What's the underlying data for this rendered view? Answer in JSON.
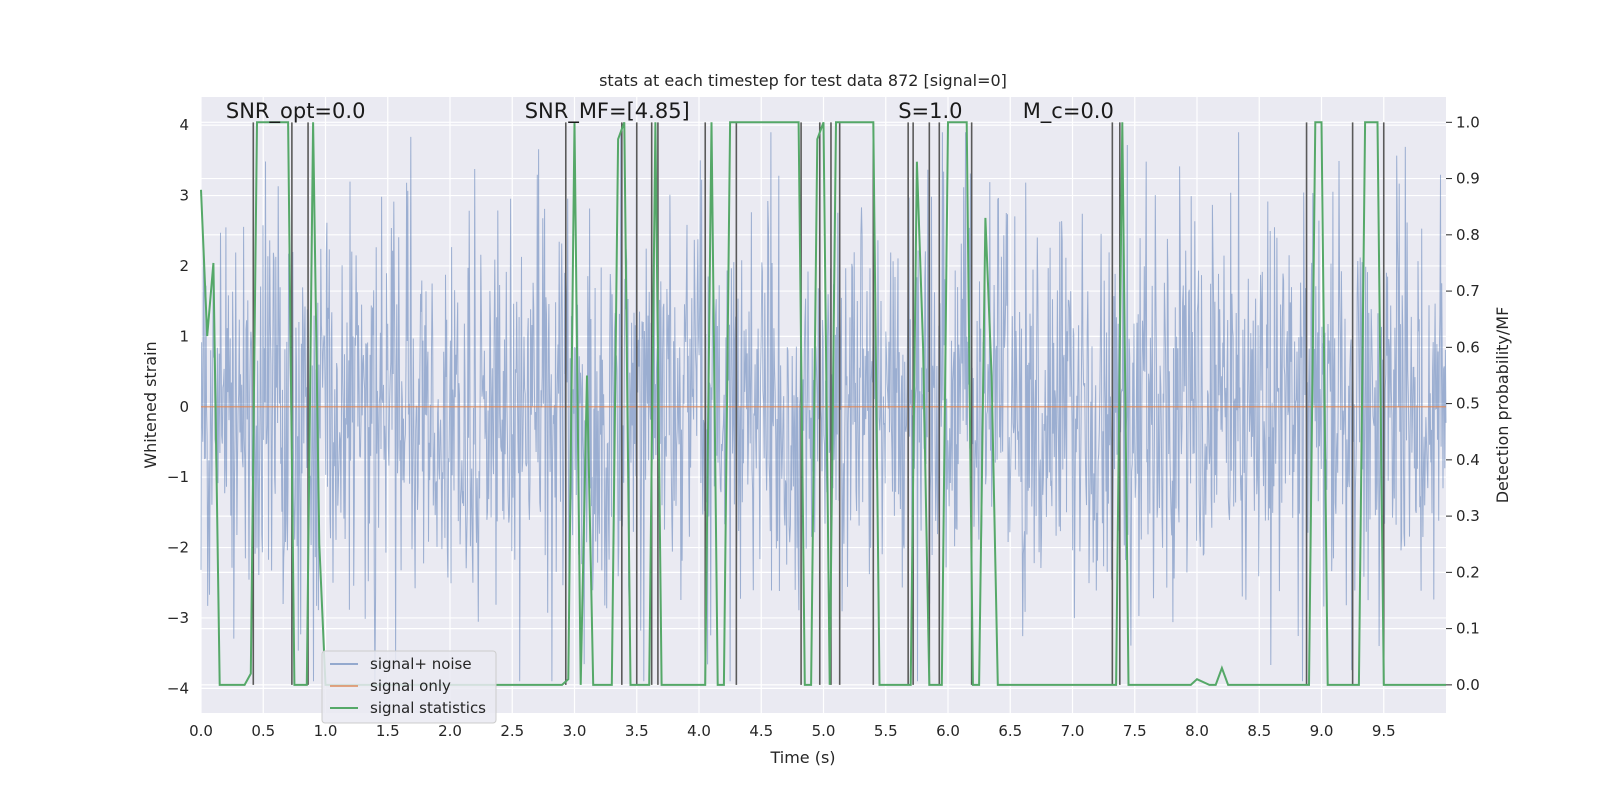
{
  "chart_data": {
    "type": "line",
    "title": "stats at each timestep for test data 872 [signal=0]",
    "xlabel": "Time (s)",
    "ylabel": "Whitened strain",
    "ylabel_right": "Detection probability/MF",
    "xlim": [
      0.0,
      10.0
    ],
    "ylim": [
      -4.35,
      4.4
    ],
    "ylim_right": [
      -0.05,
      1.045
    ],
    "x_ticks": [
      0.0,
      0.5,
      1.0,
      1.5,
      2.0,
      2.5,
      3.0,
      3.5,
      4.0,
      4.5,
      5.0,
      5.5,
      6.0,
      6.5,
      7.0,
      7.5,
      8.0,
      8.5,
      9.0,
      9.5
    ],
    "x_tick_labels": [
      "0.0",
      "0.5",
      "1.0",
      "1.5",
      "2.0",
      "2.5",
      "3.0",
      "3.5",
      "4.0",
      "4.5",
      "5.0",
      "5.5",
      "6.0",
      "6.5",
      "7.0",
      "7.5",
      "8.0",
      "8.5",
      "9.0",
      "9.5"
    ],
    "y_ticks": [
      -4,
      -3,
      -2,
      -1,
      0,
      1,
      2,
      3,
      4
    ],
    "y_tick_labels": [
      "−4",
      "−3",
      "−2",
      "−1",
      "0",
      "1",
      "2",
      "3",
      "4"
    ],
    "y_ticks_right": [
      0.0,
      0.1,
      0.2,
      0.3,
      0.4,
      0.5,
      0.6,
      0.7,
      0.8,
      0.9,
      1.0
    ],
    "y_tick_labels_right": [
      "0.0",
      "0.1",
      "0.2",
      "0.3",
      "0.4",
      "0.5",
      "0.6",
      "0.7",
      "0.8",
      "0.9",
      "1.0"
    ],
    "grid": true,
    "legend": {
      "placement": "lower-left",
      "entries": [
        "signal+ noise",
        "signal only",
        "signal statistics"
      ]
    },
    "annotations": [
      {
        "text": "SNR_opt=0.0",
        "x": 0.2,
        "y": 4.1
      },
      {
        "text": "SNR_MF=[4.85]",
        "x": 2.6,
        "y": 4.1
      },
      {
        "text": "S=1.0",
        "x": 5.6,
        "y": 4.1
      },
      {
        "text": "M_c=0.0",
        "x": 6.6,
        "y": 4.1
      }
    ],
    "series": [
      {
        "name": "signal+ noise",
        "color": "#4c72b0",
        "kind": "noise",
        "sigma": 1.0,
        "samples": 2048,
        "x_range": [
          0.0,
          10.0
        ]
      },
      {
        "name": "signal only",
        "color": "#dd8452",
        "x": [
          0.0,
          10.0
        ],
        "y": [
          0.0,
          0.0
        ]
      },
      {
        "name": "signal statistics",
        "color": "#55a868",
        "axis": "right",
        "x": [
          0.0,
          0.05,
          0.1,
          0.15,
          0.2,
          0.25,
          0.3,
          0.35,
          0.4,
          0.45,
          0.5,
          0.55,
          0.6,
          0.65,
          0.7,
          0.75,
          0.8,
          0.85,
          0.9,
          0.95,
          1.0,
          1.05,
          1.1,
          2.5,
          2.9,
          2.95,
          3.0,
          3.05,
          3.1,
          3.15,
          3.2,
          3.25,
          3.3,
          3.35,
          3.4,
          3.45,
          3.5,
          3.55,
          3.6,
          3.65,
          3.7,
          3.75,
          4.0,
          4.05,
          4.1,
          4.15,
          4.2,
          4.25,
          4.3,
          4.35,
          4.8,
          4.85,
          4.9,
          4.95,
          5.0,
          5.05,
          5.1,
          5.15,
          5.4,
          5.45,
          5.65,
          5.7,
          5.75,
          5.8,
          5.85,
          5.9,
          5.95,
          6.0,
          6.05,
          6.15,
          6.2,
          6.25,
          6.3,
          6.35,
          6.4,
          6.45,
          7.3,
          7.35,
          7.4,
          7.45,
          7.5,
          7.9,
          7.95,
          8.0,
          8.1,
          8.15,
          8.2,
          8.25,
          8.3,
          8.85,
          8.9,
          8.95,
          9.0,
          9.05,
          9.1,
          9.25,
          9.3,
          9.35,
          9.4,
          9.45,
          9.5,
          9.55,
          10.0
        ],
        "y": [
          0.88,
          0.62,
          0.75,
          0.0,
          0.0,
          0.0,
          0.0,
          0.0,
          0.02,
          1.0,
          1.0,
          1.0,
          1.0,
          1.0,
          1.0,
          0.0,
          0.0,
          0.0,
          1.0,
          0.25,
          0.0,
          0.0,
          0.0,
          0.0,
          0.0,
          0.01,
          1.0,
          0.0,
          0.55,
          0.0,
          0.0,
          0.0,
          0.0,
          0.97,
          1.0,
          0.0,
          0.0,
          0.0,
          0.0,
          1.0,
          0.0,
          0.0,
          0.0,
          0.0,
          1.0,
          0.0,
          0.0,
          1.0,
          1.0,
          1.0,
          1.0,
          0.0,
          0.0,
          0.97,
          1.0,
          0.0,
          1.0,
          1.0,
          1.0,
          0.0,
          0.0,
          0.0,
          0.93,
          0.6,
          0.0,
          0.0,
          0.0,
          1.0,
          1.0,
          1.0,
          0.0,
          0.0,
          0.83,
          0.55,
          0.0,
          0.0,
          0.0,
          0.0,
          1.0,
          0.0,
          0.0,
          0.0,
          0.0,
          0.01,
          0.0,
          0.0,
          0.03,
          0.0,
          0.0,
          0.0,
          0.0,
          1.0,
          1.0,
          0.0,
          0.0,
          0.0,
          0.0,
          1.0,
          1.0,
          1.0,
          0.0,
          0.0,
          0.0
        ]
      }
    ],
    "vertical_lines": {
      "color": "#5a5a5a",
      "x": [
        0.42,
        0.73,
        0.86,
        2.93,
        3.38,
        3.5,
        3.62,
        3.67,
        4.05,
        4.3,
        4.82,
        4.97,
        5.06,
        5.13,
        5.4,
        5.68,
        5.72,
        5.85,
        5.93,
        6.19,
        7.32,
        7.38,
        8.88,
        9.25,
        9.5
      ]
    }
  }
}
